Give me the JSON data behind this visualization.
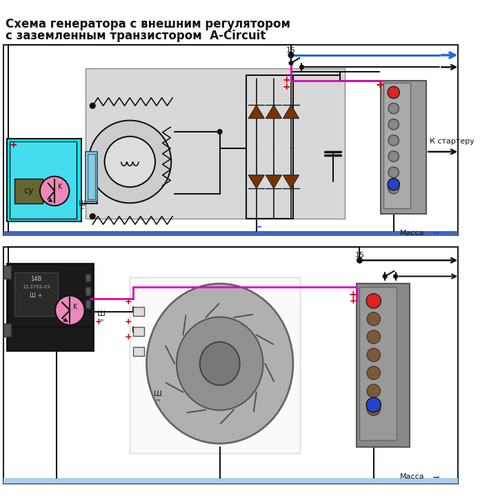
{
  "title_line1": "Схема генератора с внешним регулятором",
  "title_line2": "с заземленным транзистором  A-Circuit",
  "label_massa": "Масса",
  "label_k_starteru": "К стартеру",
  "label_15": "15",
  "background": "#ffffff",
  "gray_box": "#d8d8d8",
  "ground_bar": "#4466bb",
  "cyan_box": "#00eeff",
  "cyan_box2": "#44ddee",
  "arrow_blue": "#2266dd",
  "wire_magenta": "#dd00bb",
  "connector_gray": "#999999",
  "diode_color": "#7a3300",
  "fig_width": 6.96,
  "fig_height": 7.19,
  "dpi": 100
}
